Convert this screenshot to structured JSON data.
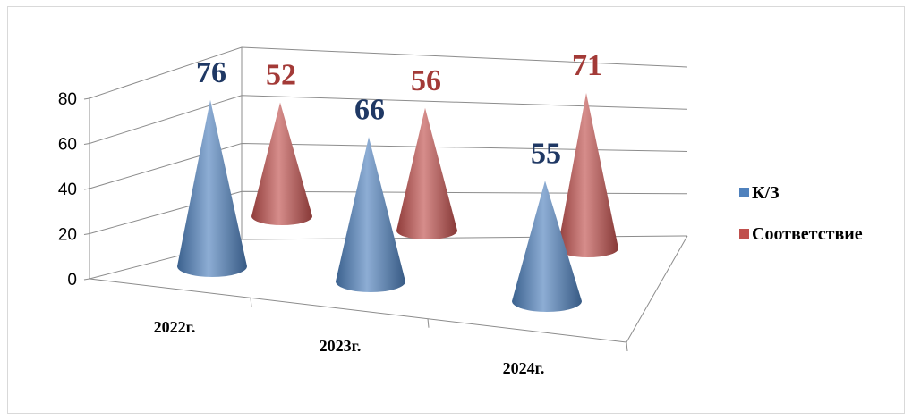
{
  "chart_data": {
    "type": "bar",
    "style": "3d-cone",
    "categories": [
      "2022г.",
      "2023г.",
      "2024г."
    ],
    "series": [
      {
        "name": "К/З",
        "values": [
          76,
          66,
          55
        ],
        "color": "#4f81bd",
        "label_color": "#1f3864"
      },
      {
        "name": "Соответствие",
        "values": [
          52,
          56,
          71
        ],
        "color": "#c0504d",
        "label_color": "#a33a37"
      }
    ],
    "y_ticks": [
      "0",
      "20",
      "40",
      "60",
      "80"
    ],
    "ylim": [
      0,
      80
    ],
    "grid": true,
    "legend_position": "right",
    "title": "",
    "xlabel": "",
    "ylabel": ""
  }
}
